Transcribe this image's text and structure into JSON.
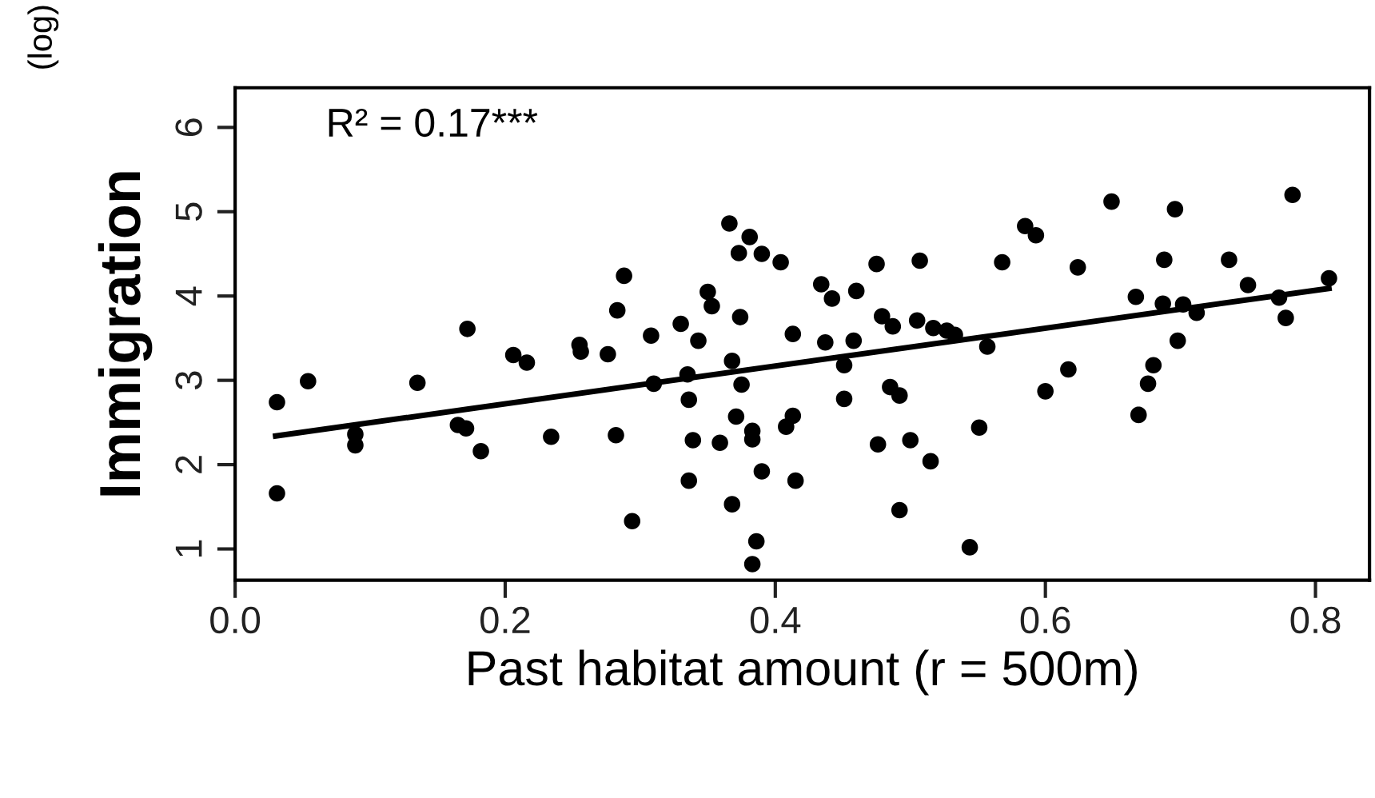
{
  "chart_data": {
    "type": "scatter",
    "xlabel": "Past habitat amount (r = 500m)",
    "ylabel": "Immigration",
    "annotations": [
      "(log)",
      "R² = 0.17***"
    ],
    "xlim": [
      0.0,
      0.84
    ],
    "ylim": [
      0.63,
      6.47
    ],
    "xticks": [
      {
        "value": 0,
        "label": "0.0"
      },
      0.2,
      0.4,
      0.6,
      0.8
    ],
    "yticks": [
      1,
      2,
      3,
      4,
      5,
      6
    ],
    "grid": false,
    "series": [
      {
        "color": "#000000",
        "marker": "circle",
        "x": [
          0.031,
          0.031,
          0.054,
          0.089,
          0.089,
          0.135,
          0.172,
          0.165,
          0.171,
          0.182,
          0.206,
          0.216,
          0.234,
          0.255,
          0.256,
          0.276,
          0.282,
          0.283,
          0.288,
          0.294,
          0.308,
          0.31,
          0.33,
          0.343,
          0.335,
          0.336,
          0.339,
          0.336,
          0.35,
          0.353,
          0.359,
          0.366,
          0.368,
          0.375,
          0.374,
          0.373,
          0.381,
          0.39,
          0.404,
          0.371,
          0.383,
          0.383,
          0.39,
          0.368,
          0.386,
          0.383,
          0.413,
          0.413,
          0.408,
          0.415,
          0.434,
          0.442,
          0.437,
          0.451,
          0.451,
          0.458,
          0.46,
          0.475,
          0.507,
          0.479,
          0.487,
          0.485,
          0.492,
          0.476,
          0.5,
          0.515,
          0.492,
          0.505,
          0.517,
          0.527,
          0.533,
          0.557,
          0.551,
          0.544,
          0.568,
          0.585,
          0.593,
          0.6,
          0.617,
          0.624,
          0.649,
          0.667,
          0.669,
          0.676,
          0.68,
          0.687,
          0.688,
          0.696,
          0.698,
          0.702,
          0.712,
          0.736,
          0.75,
          0.773,
          0.778,
          0.783,
          0.81
        ],
        "values": [
          2.74,
          1.66,
          2.99,
          2.36,
          2.23,
          2.97,
          3.61,
          2.47,
          2.43,
          2.16,
          3.3,
          3.21,
          2.33,
          3.42,
          3.34,
          3.31,
          2.35,
          3.83,
          4.24,
          1.33,
          3.53,
          2.96,
          3.67,
          3.47,
          3.07,
          2.77,
          2.29,
          1.81,
          4.05,
          3.88,
          2.26,
          4.86,
          3.23,
          2.95,
          3.75,
          4.51,
          4.7,
          4.5,
          4.4,
          2.57,
          2.4,
          2.3,
          1.92,
          1.53,
          1.09,
          0.82,
          3.55,
          2.58,
          2.45,
          1.81,
          4.14,
          3.97,
          3.45,
          3.18,
          2.78,
          3.47,
          4.06,
          4.38,
          4.42,
          3.76,
          3.64,
          2.92,
          2.82,
          2.24,
          2.29,
          2.04,
          1.46,
          3.71,
          3.62,
          3.59,
          3.54,
          3.4,
          2.44,
          1.02,
          4.4,
          4.83,
          4.72,
          2.87,
          3.13,
          4.34,
          5.12,
          3.99,
          2.59,
          2.96,
          3.18,
          3.91,
          4.43,
          5.03,
          3.47,
          3.9,
          3.8,
          4.43,
          4.13,
          3.98,
          3.74,
          5.2,
          4.21
        ]
      },
      {
        "type": "line",
        "color": "#000000",
        "x": [
          0.03,
          0.81
        ],
        "values": [
          2.34,
          4.09
        ],
        "line_style": "solid",
        "marker": "none"
      }
    ]
  }
}
